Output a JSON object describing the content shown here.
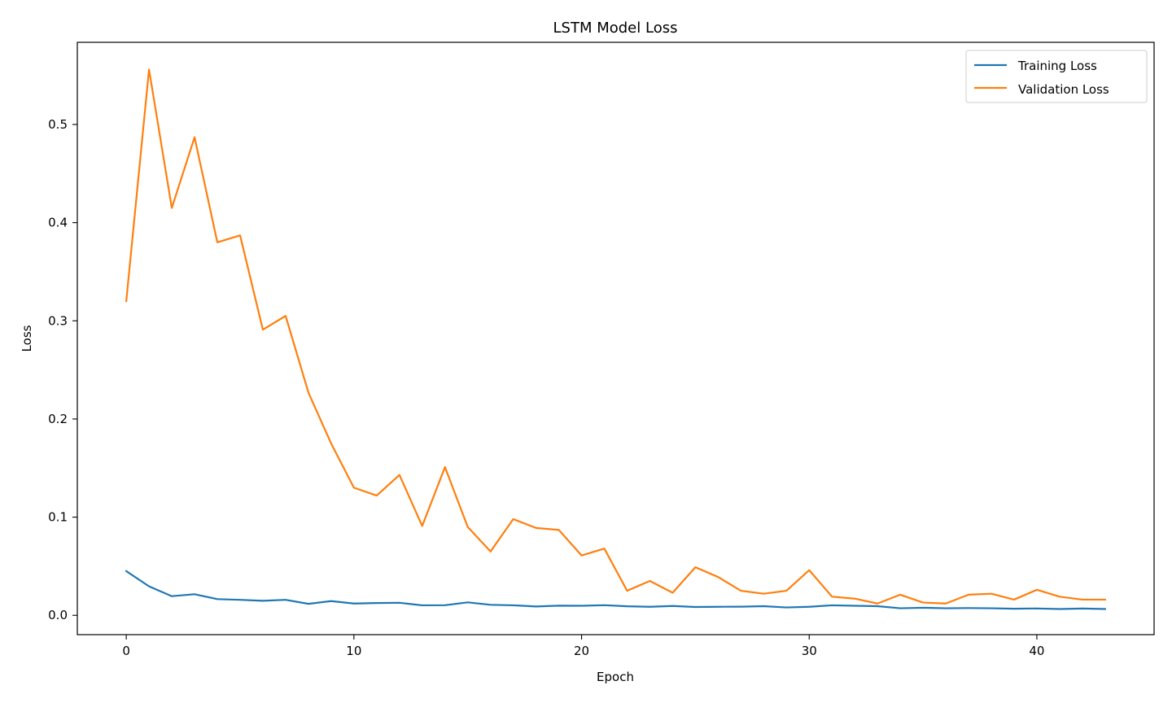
{
  "chart_data": {
    "type": "line",
    "title": "LSTM Model Loss",
    "xlabel": "Epoch",
    "ylabel": "Loss",
    "xlim": [
      -2.15,
      45.15
    ],
    "ylim": [
      -0.0197,
      0.5837
    ],
    "x_ticks": [
      0,
      10,
      20,
      30,
      40
    ],
    "y_ticks": [
      0.0,
      0.1,
      0.2,
      0.3,
      0.4,
      0.5
    ],
    "x_tick_labels": [
      "0",
      "10",
      "20",
      "30",
      "40"
    ],
    "y_tick_labels": [
      "0.0",
      "0.1",
      "0.2",
      "0.3",
      "0.4",
      "0.5"
    ],
    "grid": false,
    "legend_position": "top-right",
    "x": [
      0,
      1,
      2,
      3,
      4,
      5,
      6,
      7,
      8,
      9,
      10,
      11,
      12,
      13,
      14,
      15,
      16,
      17,
      18,
      19,
      20,
      21,
      22,
      23,
      24,
      25,
      26,
      27,
      28,
      29,
      30,
      31,
      32,
      33,
      34,
      35,
      36,
      37,
      38,
      39,
      40,
      41,
      42,
      43
    ],
    "series": [
      {
        "name": "Training Loss",
        "color": "#1f77b4",
        "values": [
          0.045,
          0.0295,
          0.0195,
          0.0215,
          0.0165,
          0.0158,
          0.0148,
          0.0158,
          0.0117,
          0.0145,
          0.012,
          0.0125,
          0.0128,
          0.0102,
          0.0103,
          0.0132,
          0.0107,
          0.0102,
          0.009,
          0.0098,
          0.0097,
          0.0103,
          0.0092,
          0.0087,
          0.0095,
          0.0085,
          0.0087,
          0.0088,
          0.0093,
          0.008,
          0.0087,
          0.0102,
          0.0097,
          0.0093,
          0.0072,
          0.0077,
          0.0072,
          0.0074,
          0.0072,
          0.0067,
          0.007,
          0.0064,
          0.0069,
          0.0064
        ]
      },
      {
        "name": "Validation Loss",
        "color": "#ff7f0e",
        "values": [
          0.32,
          0.556,
          0.415,
          0.487,
          0.38,
          0.387,
          0.291,
          0.305,
          0.227,
          0.175,
          0.13,
          0.122,
          0.143,
          0.091,
          0.151,
          0.09,
          0.065,
          0.098,
          0.089,
          0.087,
          0.061,
          0.068,
          0.025,
          0.035,
          0.023,
          0.049,
          0.039,
          0.025,
          0.022,
          0.025,
          0.046,
          0.019,
          0.017,
          0.012,
          0.021,
          0.013,
          0.012,
          0.021,
          0.022,
          0.016,
          0.026,
          0.019,
          0.016,
          0.016
        ]
      }
    ]
  }
}
